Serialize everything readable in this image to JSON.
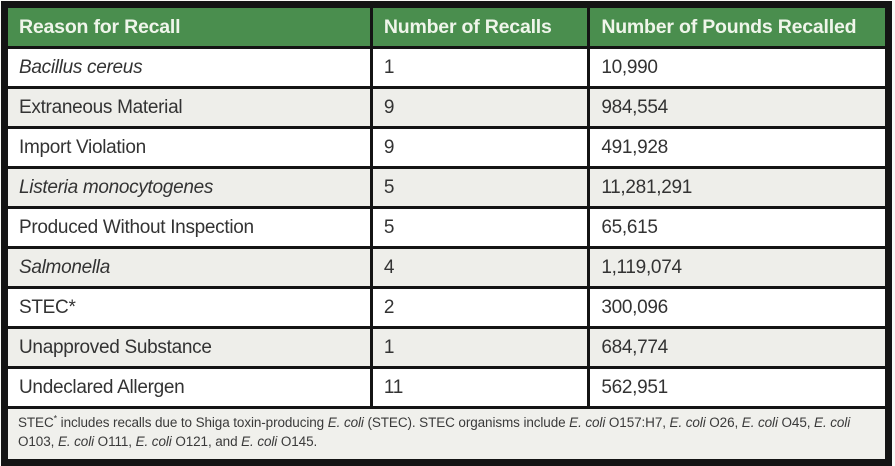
{
  "table": {
    "title": "Reasons for recall summary table",
    "colors": {
      "header_bg": "#4a8e4e",
      "header_text": "#eff5ea",
      "border": "#141414",
      "alt_row_bg": "#eeeeea",
      "footnote_bg": "#f0f0ec"
    },
    "columns": [
      {
        "label": "Reason for Recall"
      },
      {
        "label": "Number of Recalls"
      },
      {
        "label": "Number of Pounds Recalled"
      }
    ],
    "rows": [
      {
        "reason": "Bacillus cereus",
        "italic": true,
        "recalls": "1",
        "pounds": "10,990"
      },
      {
        "reason": "Extraneous Material",
        "italic": false,
        "recalls": "9",
        "pounds": "984,554"
      },
      {
        "reason": "Import Violation",
        "italic": false,
        "recalls": "9",
        "pounds": "491,928"
      },
      {
        "reason": "Listeria monocytogenes",
        "italic": true,
        "recalls": "5",
        "pounds": "11,281,291"
      },
      {
        "reason": "Produced Without Inspection",
        "italic": false,
        "recalls": "5",
        "pounds": "65,615"
      },
      {
        "reason": "Salmonella",
        "italic": true,
        "recalls": "4",
        "pounds": "1,119,074"
      },
      {
        "reason": "STEC*",
        "italic": false,
        "recalls": "2",
        "pounds": "300,096"
      },
      {
        "reason": "Unapproved Substance",
        "italic": false,
        "recalls": "1",
        "pounds": "684,774"
      },
      {
        "reason": "Undeclared Allergen",
        "italic": false,
        "recalls": "11",
        "pounds": "562,951"
      }
    ],
    "footnote_segments": [
      {
        "text": "STEC"
      },
      {
        "text": "*",
        "sup": true
      },
      {
        "text": " includes recalls due to Shiga toxin-producing "
      },
      {
        "text": "E. coli",
        "italic": true
      },
      {
        "text": " (STEC). STEC organisms include "
      },
      {
        "text": "E. coli",
        "italic": true
      },
      {
        "text": " O157:H7, "
      },
      {
        "text": "E. coli",
        "italic": true
      },
      {
        "text": " O26, "
      },
      {
        "text": "E. coli",
        "italic": true
      },
      {
        "text": " O45, "
      },
      {
        "text": "E. coli",
        "italic": true
      },
      {
        "text": " O103, "
      },
      {
        "text": "E. coli",
        "italic": true
      },
      {
        "text": " O111, "
      },
      {
        "text": "E. coli",
        "italic": true
      },
      {
        "text": " O121, and "
      },
      {
        "text": "E. coli",
        "italic": true
      },
      {
        "text": " O145."
      }
    ]
  }
}
